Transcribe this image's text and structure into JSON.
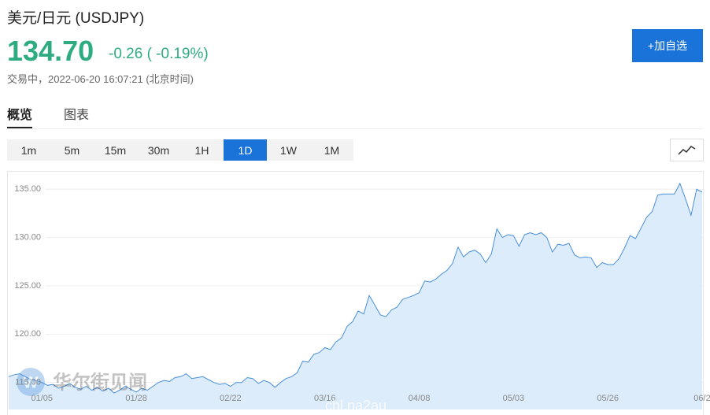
{
  "header": {
    "title": "美元/日元 (USDJPY)",
    "price": "134.70",
    "change": "-0.26 ( -0.19%)",
    "status": "交易中，2022-06-20 16:07:21 (北京时间)",
    "button": "+加自选"
  },
  "tabs": [
    {
      "label": "概览",
      "active": true
    },
    {
      "label": "图表",
      "active": false
    }
  ],
  "timeframes": [
    {
      "label": "1m",
      "active": false
    },
    {
      "label": "5m",
      "active": false
    },
    {
      "label": "15m",
      "active": false
    },
    {
      "label": "30m",
      "active": false
    },
    {
      "label": "1H",
      "active": false
    },
    {
      "label": "1D",
      "active": true
    },
    {
      "label": "1W",
      "active": false
    },
    {
      "label": "1M",
      "active": false
    }
  ],
  "watermark": {
    "brand": "华尔街见闻",
    "site": "chl.na2au"
  },
  "chart_data": {
    "type": "area",
    "categories": [
      null,
      null,
      null,
      null,
      null,
      null,
      "01/05",
      null,
      null,
      null,
      null,
      null,
      null,
      null,
      null,
      null,
      null,
      null,
      null,
      null,
      null,
      null,
      null,
      "01/28",
      null,
      null,
      null,
      null,
      null,
      null,
      null,
      null,
      null,
      null,
      null,
      null,
      null,
      null,
      null,
      null,
      "02/22",
      null,
      null,
      null,
      null,
      null,
      null,
      null,
      null,
      null,
      null,
      null,
      null,
      null,
      null,
      null,
      null,
      "03/16",
      null,
      null,
      null,
      null,
      null,
      null,
      null,
      null,
      null,
      null,
      null,
      null,
      null,
      null,
      null,
      null,
      "04/08",
      null,
      null,
      null,
      null,
      null,
      null,
      null,
      null,
      null,
      null,
      null,
      null,
      null,
      null,
      null,
      null,
      "05/03",
      null,
      null,
      null,
      null,
      null,
      null,
      null,
      null,
      null,
      null,
      null,
      null,
      null,
      null,
      null,
      null,
      "05/26",
      null,
      null,
      null,
      null,
      null,
      null,
      null,
      null,
      null,
      null,
      null,
      null,
      null,
      null,
      null,
      null,
      "06/2"
    ],
    "series": [
      {
        "name": "USDJPY",
        "color": "#4a90d9",
        "fill": "#dcecfb",
        "values": [
          115.6,
          115.8,
          115.9,
          115.6,
          115.3,
          115.2,
          115.0,
          114.7,
          114.8,
          114.4,
          114.6,
          114.9,
          114.5,
          114.3,
          114.6,
          114.2,
          114.5,
          114.1,
          114.4,
          113.9,
          114.2,
          114.6,
          114.3,
          114.0,
          114.4,
          114.2,
          114.6,
          115.0,
          115.2,
          115.1,
          115.5,
          115.6,
          115.9,
          115.4,
          115.5,
          115.6,
          115.3,
          115.0,
          114.8,
          114.9,
          114.6,
          115.0,
          115.0,
          115.5,
          115.4,
          114.9,
          115.2,
          115.0,
          114.5,
          115.0,
          115.4,
          115.6,
          116.0,
          117.2,
          117.1,
          117.9,
          118.1,
          118.6,
          118.4,
          119.2,
          119.6,
          120.8,
          121.3,
          122.4,
          122.1,
          124.0,
          123.0,
          122.0,
          121.8,
          122.5,
          122.8,
          123.6,
          123.8,
          124.0,
          124.3,
          125.5,
          125.4,
          125.7,
          126.2,
          126.6,
          127.3,
          129.0,
          128.0,
          128.5,
          128.7,
          128.3,
          127.4,
          128.3,
          130.9,
          130.0,
          130.3,
          130.2,
          129.1,
          130.3,
          130.5,
          130.3,
          130.5,
          130.0,
          128.5,
          129.3,
          129.2,
          129.4,
          128.2,
          127.9,
          128.0,
          127.9,
          126.9,
          127.4,
          127.2,
          127.2,
          127.8,
          128.9,
          130.2,
          129.9,
          131.0,
          132.1,
          132.7,
          134.4,
          134.5,
          134.5,
          134.5,
          135.6,
          134.0,
          132.3,
          135.0,
          134.7
        ]
      }
    ],
    "ylim": [
      112.2,
      136.9
    ],
    "yticks": [
      {
        "value": 115,
        "label": "115.00"
      },
      {
        "value": 120,
        "label": "120.00"
      },
      {
        "value": 125,
        "label": "125.00"
      },
      {
        "value": 130,
        "label": "130.00"
      },
      {
        "value": 135,
        "label": "135.00"
      }
    ],
    "grid": true
  }
}
